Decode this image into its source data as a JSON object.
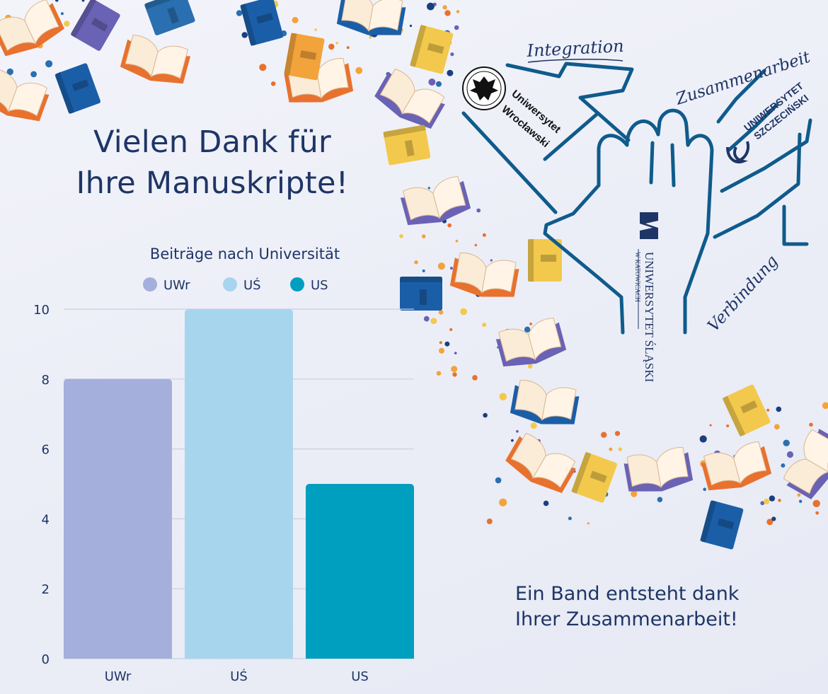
{
  "headline": {
    "line1": "Vielen Dank für",
    "line2": "Ihre Manuskripte!"
  },
  "footer": {
    "line1": "Ein Band entsteht dank",
    "line2": "Ihrer Zusammenarbeit!"
  },
  "words": {
    "integration": "Integration",
    "zusammenarbeit": "Zusammenarbeit",
    "verbindung": "Verbindung"
  },
  "logos": {
    "uwr_line1": "Uniwersytet",
    "uwr_line2": "Wrocławski",
    "us_line1": "UNIWERSYTET",
    "us_line2": "SZCZECIŃSKI",
    "uslaski_line1": "UNIWERSYTET ŚLĄSKI",
    "uslaski_line2": "W KATOWICACH"
  },
  "colors": {
    "navy": "#1e3566",
    "hand_line": "#0f5b8c",
    "uwr": "#a5afdc",
    "us_slask": "#a8d5ee",
    "us_szczecin": "#009ebf"
  },
  "chart_data": {
    "type": "bar",
    "title": "Beiträge nach Universität",
    "categories": [
      "UWr",
      "UŚ",
      "US"
    ],
    "series": [
      {
        "name": "UWr",
        "values": [
          8,
          null,
          null
        ],
        "color": "#a5afdc"
      },
      {
        "name": "UŚ",
        "values": [
          null,
          10,
          null
        ],
        "color": "#a8d5ee"
      },
      {
        "name": "US",
        "values": [
          null,
          null,
          5
        ],
        "color": "#009ebf"
      }
    ],
    "values": [
      8,
      10,
      5
    ],
    "ylim": [
      0,
      10
    ],
    "yticks": [
      0,
      2,
      4,
      6,
      8,
      10
    ],
    "xlabel": "",
    "ylabel": "",
    "grid": true,
    "legend": "top"
  }
}
